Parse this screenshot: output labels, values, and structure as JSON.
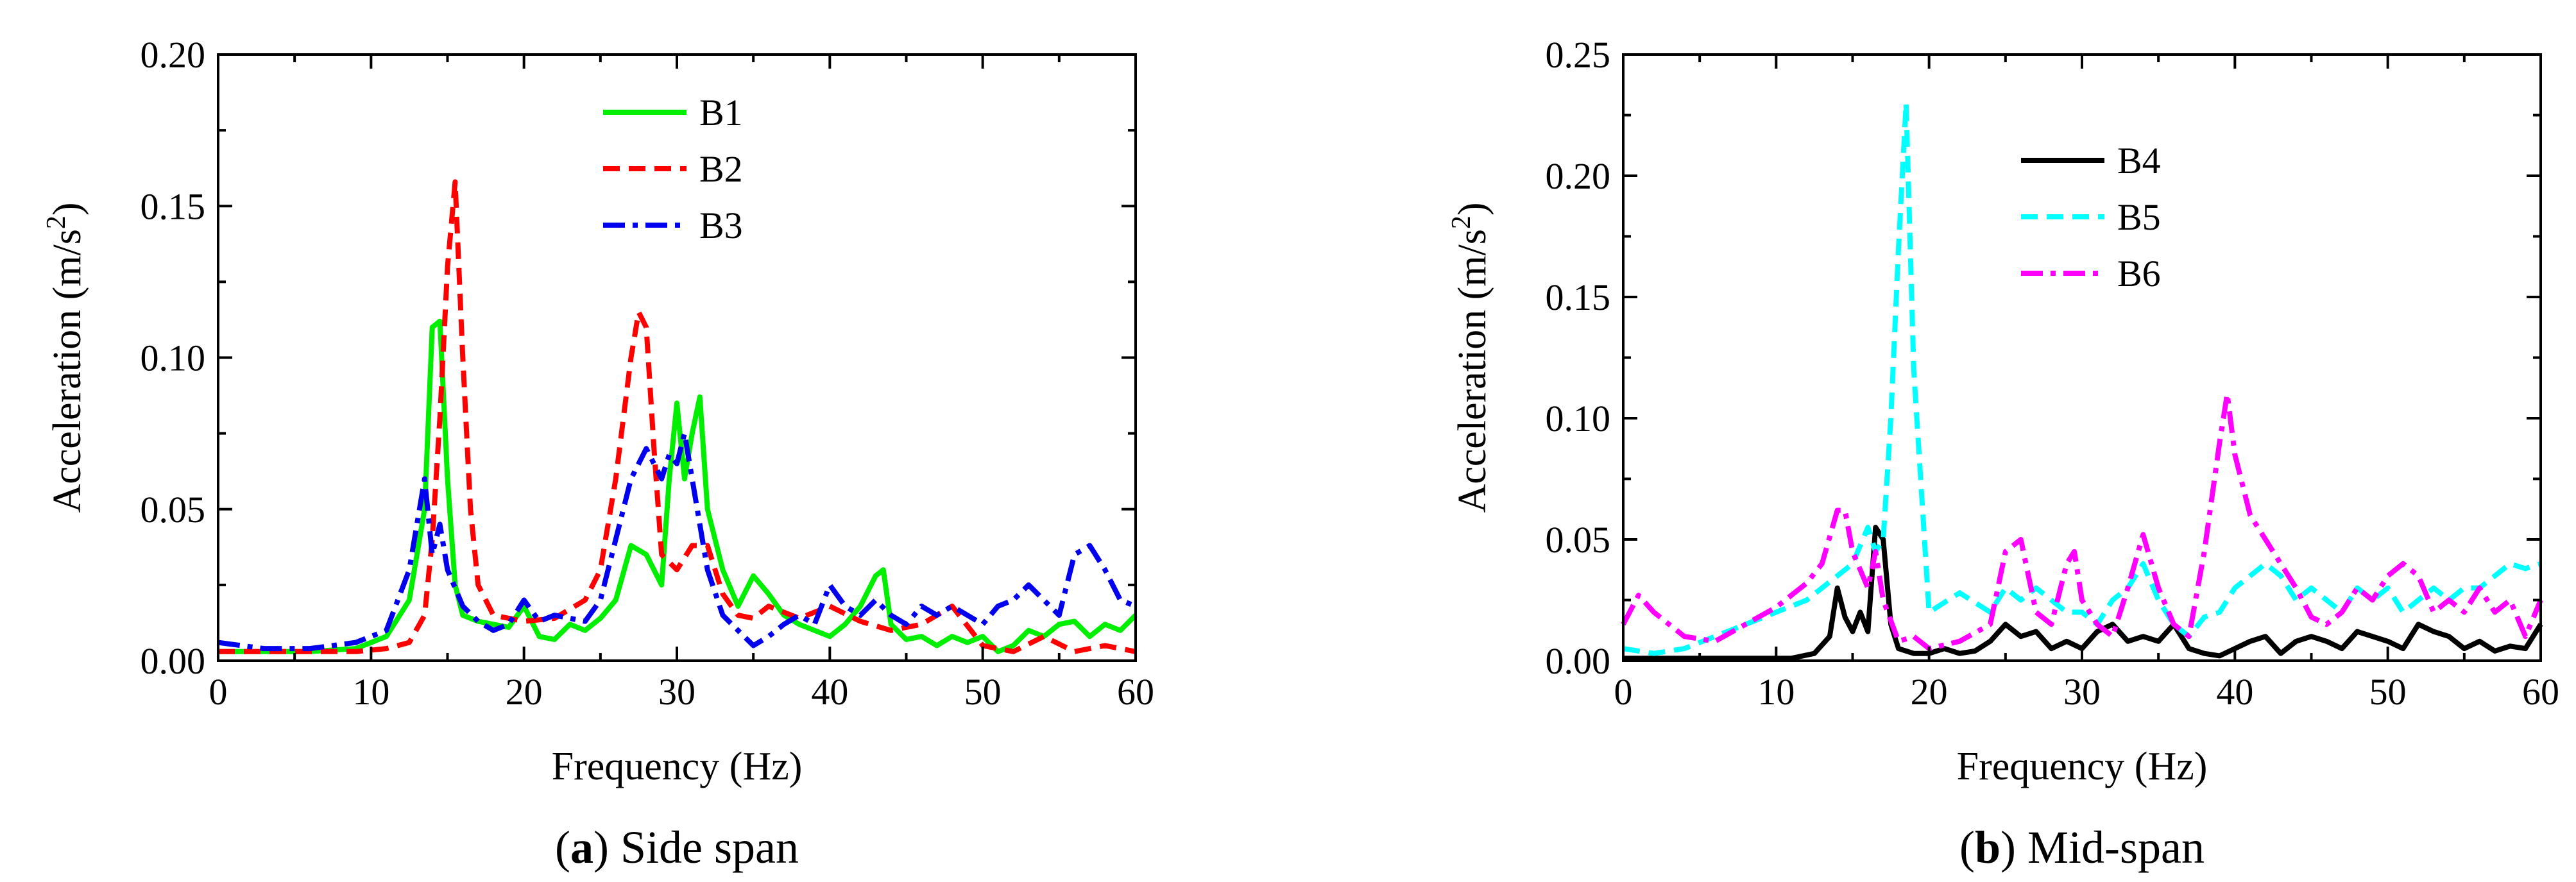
{
  "chart_data": [
    {
      "type": "line",
      "caption_letter": "a",
      "caption_text": " Side span",
      "xlabel": "Frequency (Hz)",
      "ylabel": "Acceleration (m/s",
      "ylabel_sup": "2",
      "ylabel_close": ")",
      "xlim": [
        0,
        60
      ],
      "ylim": [
        0,
        0.2
      ],
      "xticks": [
        0,
        10,
        20,
        30,
        40,
        50,
        60
      ],
      "xtick_labels": [
        "0",
        "10",
        "20",
        "30",
        "40",
        "50",
        "60"
      ],
      "yticks": [
        0,
        0.05,
        0.1,
        0.15,
        0.2
      ],
      "ytick_labels": [
        "0.00",
        "0.05",
        "0.10",
        "0.15",
        "0.20"
      ],
      "grid": false,
      "legend_position": "top-center",
      "series": [
        {
          "name": "B1",
          "color": "#00ee00",
          "dash": "solid",
          "x": [
            0,
            3,
            6,
            9,
            11,
            12.5,
            13.5,
            14,
            14.5,
            15,
            15.5,
            16,
            17,
            18,
            19,
            20,
            21,
            22,
            23,
            24,
            25,
            26,
            27,
            28,
            29,
            29.5,
            30,
            30.5,
            31,
            31.5,
            32,
            33,
            34,
            35,
            36,
            37,
            38,
            39,
            40,
            41,
            42,
            43,
            43.5,
            44,
            45,
            46,
            47,
            48,
            49,
            50,
            51,
            52,
            53,
            54,
            55,
            56,
            57,
            58,
            59,
            60
          ],
          "y": [
            0.003,
            0.003,
            0.003,
            0.004,
            0.008,
            0.02,
            0.05,
            0.11,
            0.112,
            0.06,
            0.025,
            0.015,
            0.013,
            0.012,
            0.011,
            0.018,
            0.008,
            0.007,
            0.012,
            0.01,
            0.014,
            0.02,
            0.038,
            0.035,
            0.025,
            0.06,
            0.085,
            0.06,
            0.075,
            0.087,
            0.05,
            0.03,
            0.018,
            0.028,
            0.022,
            0.015,
            0.012,
            0.01,
            0.008,
            0.012,
            0.018,
            0.028,
            0.03,
            0.012,
            0.007,
            0.008,
            0.005,
            0.008,
            0.006,
            0.008,
            0.003,
            0.005,
            0.01,
            0.008,
            0.012,
            0.013,
            0.008,
            0.012,
            0.01,
            0.015
          ]
        },
        {
          "name": "B2",
          "color": "#ff0000",
          "dash": "dash",
          "x": [
            0,
            3,
            6,
            9,
            11,
            12.5,
            13.5,
            14,
            14.5,
            15,
            15.5,
            16,
            16.5,
            17,
            18,
            20,
            22,
            24,
            25,
            26,
            27,
            27.5,
            28,
            28.5,
            29,
            30,
            31,
            32,
            33,
            34,
            35,
            36,
            38,
            40,
            42,
            44,
            46,
            48,
            50,
            52,
            54,
            56,
            58,
            60
          ],
          "y": [
            0.003,
            0.003,
            0.003,
            0.003,
            0.004,
            0.006,
            0.015,
            0.04,
            0.08,
            0.13,
            0.158,
            0.1,
            0.05,
            0.025,
            0.015,
            0.013,
            0.014,
            0.02,
            0.03,
            0.06,
            0.1,
            0.115,
            0.11,
            0.07,
            0.035,
            0.03,
            0.038,
            0.038,
            0.022,
            0.015,
            0.014,
            0.018,
            0.014,
            0.018,
            0.013,
            0.01,
            0.012,
            0.018,
            0.005,
            0.003,
            0.008,
            0.003,
            0.005,
            0.003
          ]
        },
        {
          "name": "B3",
          "color": "#0000ee",
          "dash": "dashdot",
          "x": [
            0,
            3,
            6,
            9,
            11,
            12.5,
            13.5,
            14,
            14.5,
            15,
            16,
            17,
            18,
            19,
            20,
            21,
            22,
            23,
            24,
            25,
            26,
            27,
            28,
            29,
            29.5,
            30,
            30.5,
            31,
            32,
            33,
            34,
            35,
            36,
            37,
            38,
            39,
            40,
            41,
            42,
            43,
            44,
            45,
            46,
            47,
            48,
            49,
            50,
            51,
            52,
            53,
            54,
            55,
            56,
            57,
            58,
            59,
            60
          ],
          "y": [
            0.006,
            0.004,
            0.004,
            0.006,
            0.01,
            0.03,
            0.06,
            0.035,
            0.045,
            0.03,
            0.018,
            0.013,
            0.01,
            0.012,
            0.02,
            0.013,
            0.015,
            0.014,
            0.013,
            0.02,
            0.04,
            0.06,
            0.07,
            0.06,
            0.068,
            0.065,
            0.075,
            0.06,
            0.03,
            0.015,
            0.01,
            0.005,
            0.008,
            0.012,
            0.015,
            0.012,
            0.025,
            0.018,
            0.015,
            0.02,
            0.015,
            0.012,
            0.018,
            0.015,
            0.018,
            0.015,
            0.012,
            0.018,
            0.02,
            0.025,
            0.02,
            0.015,
            0.035,
            0.038,
            0.03,
            0.02,
            0.018
          ]
        }
      ]
    },
    {
      "type": "line",
      "caption_letter": "b",
      "caption_text": " Mid-span",
      "xlabel": "Frequency (Hz)",
      "ylabel": "Acceleration (m/s",
      "ylabel_sup": "2",
      "ylabel_close": ")",
      "xlim": [
        0,
        60
      ],
      "ylim": [
        0,
        0.25
      ],
      "xticks": [
        0,
        10,
        20,
        30,
        40,
        50,
        60
      ],
      "xtick_labels": [
        "0",
        "10",
        "20",
        "30",
        "40",
        "50",
        "60"
      ],
      "yticks": [
        0,
        0.05,
        0.1,
        0.15,
        0.2,
        0.25
      ],
      "ytick_labels": [
        "0.00",
        "0.05",
        "0.10",
        "0.15",
        "0.20",
        "0.25"
      ],
      "grid": false,
      "legend_position": "top-center",
      "series": [
        {
          "name": "B4",
          "color": "#000000",
          "dash": "solid",
          "x": [
            0,
            4,
            8,
            11,
            12.5,
            13.5,
            14,
            14.5,
            15,
            15.5,
            16,
            16.5,
            17,
            17.5,
            18,
            19,
            20,
            21,
            22,
            23,
            24,
            25,
            26,
            27,
            28,
            29,
            30,
            31,
            32,
            33,
            34,
            35,
            36,
            37,
            38,
            39,
            40,
            41,
            42,
            43,
            44,
            45,
            46,
            47,
            48,
            49,
            50,
            51,
            52,
            53,
            54,
            55,
            56,
            57,
            58,
            59,
            60
          ],
          "y": [
            0.001,
            0.001,
            0.001,
            0.001,
            0.003,
            0.01,
            0.03,
            0.018,
            0.012,
            0.02,
            0.012,
            0.055,
            0.05,
            0.015,
            0.005,
            0.003,
            0.003,
            0.005,
            0.003,
            0.004,
            0.008,
            0.015,
            0.01,
            0.012,
            0.005,
            0.008,
            0.005,
            0.012,
            0.015,
            0.008,
            0.01,
            0.008,
            0.015,
            0.005,
            0.003,
            0.002,
            0.005,
            0.008,
            0.01,
            0.003,
            0.008,
            0.01,
            0.008,
            0.005,
            0.012,
            0.01,
            0.008,
            0.005,
            0.015,
            0.012,
            0.01,
            0.005,
            0.008,
            0.004,
            0.006,
            0.005,
            0.015
          ]
        },
        {
          "name": "B5",
          "color": "#00ffff",
          "dash": "dash",
          "x": [
            0,
            2,
            4,
            6,
            8,
            10,
            12,
            13,
            14,
            15,
            16,
            16.5,
            17,
            17.5,
            18,
            18.5,
            19,
            20,
            22,
            24,
            25,
            26,
            27,
            28,
            29,
            30,
            31,
            32,
            33,
            34,
            35,
            36,
            37,
            38,
            39,
            40,
            41,
            42,
            43,
            44,
            45,
            46,
            47,
            48,
            49,
            50,
            51,
            52,
            53,
            54,
            55,
            56,
            57,
            58,
            59,
            60
          ],
          "y": [
            0.005,
            0.003,
            0.005,
            0.01,
            0.015,
            0.02,
            0.025,
            0.03,
            0.035,
            0.04,
            0.055,
            0.045,
            0.05,
            0.1,
            0.17,
            0.23,
            0.12,
            0.02,
            0.028,
            0.02,
            0.03,
            0.025,
            0.03,
            0.025,
            0.02,
            0.02,
            0.015,
            0.025,
            0.03,
            0.04,
            0.025,
            0.015,
            0.01,
            0.018,
            0.02,
            0.03,
            0.035,
            0.04,
            0.035,
            0.025,
            0.03,
            0.025,
            0.02,
            0.03,
            0.025,
            0.03,
            0.02,
            0.025,
            0.03,
            0.025,
            0.03,
            0.03,
            0.035,
            0.04,
            0.038,
            0.04
          ]
        },
        {
          "name": "B6",
          "color": "#ff00ff",
          "dash": "dashdot",
          "x": [
            0,
            1,
            2,
            4,
            6,
            8,
            10,
            12,
            13,
            14,
            14.5,
            15,
            16,
            16.5,
            17,
            18,
            19,
            20,
            22,
            24,
            25,
            26,
            27,
            28,
            29,
            29.5,
            30,
            31,
            32,
            33,
            34,
            35,
            36,
            37,
            38,
            39,
            39.5,
            40,
            41,
            42,
            43,
            44,
            45,
            46,
            47,
            48,
            49,
            50,
            51,
            52,
            53,
            54,
            55,
            56,
            57,
            58,
            59,
            60
          ],
          "y": [
            0.015,
            0.027,
            0.02,
            0.01,
            0.008,
            0.015,
            0.022,
            0.032,
            0.04,
            0.062,
            0.062,
            0.045,
            0.03,
            0.045,
            0.025,
            0.008,
            0.01,
            0.005,
            0.008,
            0.015,
            0.045,
            0.05,
            0.02,
            0.015,
            0.04,
            0.045,
            0.025,
            0.015,
            0.01,
            0.03,
            0.052,
            0.03,
            0.015,
            0.01,
            0.045,
            0.09,
            0.11,
            0.085,
            0.06,
            0.05,
            0.04,
            0.03,
            0.018,
            0.015,
            0.02,
            0.03,
            0.025,
            0.035,
            0.04,
            0.035,
            0.02,
            0.025,
            0.02,
            0.03,
            0.02,
            0.025,
            0.01,
            0.025
          ]
        }
      ]
    }
  ]
}
